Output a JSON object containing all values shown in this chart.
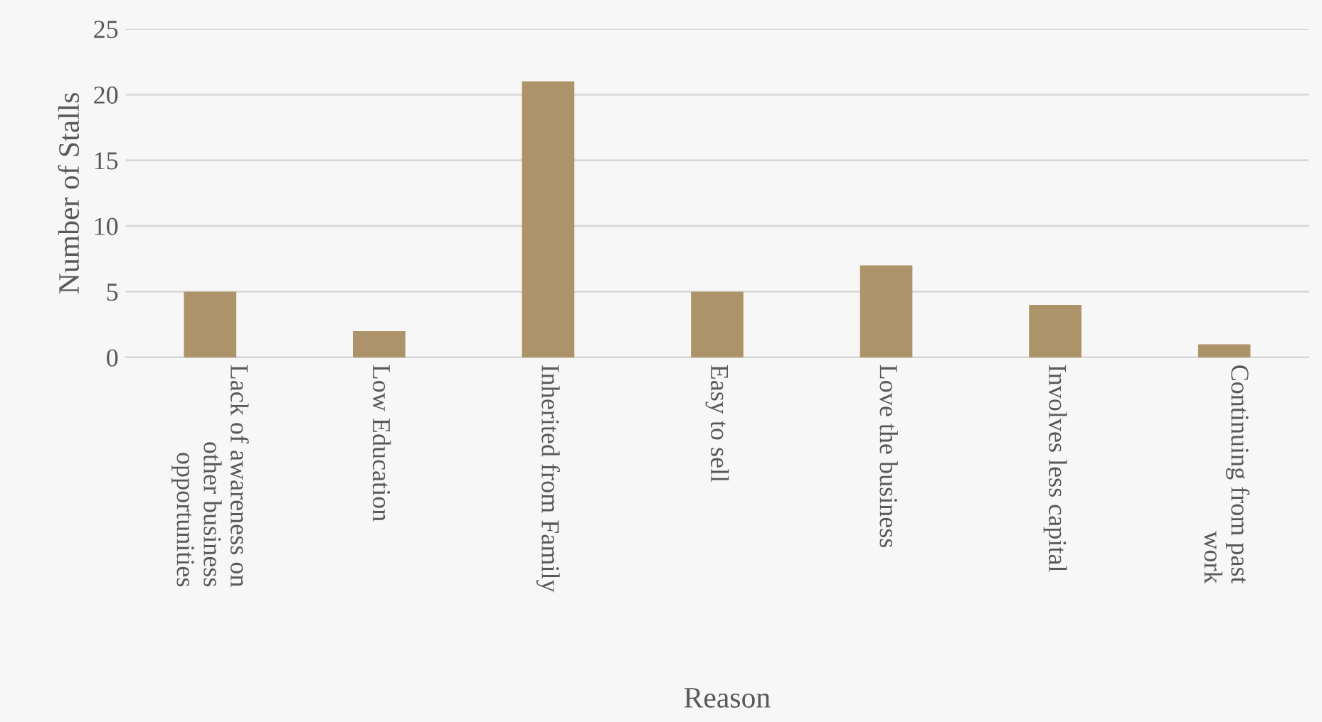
{
  "chart_data": {
    "type": "bar",
    "xlabel": "Reason",
    "ylabel": "Number of Stalls",
    "categories": [
      "Lack of awareness on\nother business\nopportunities",
      "Low Education",
      "Inherited from Family",
      "Easy to sell",
      "Love the business",
      "Involves less capital",
      "Continuing from past\nwork"
    ],
    "values": [
      5,
      2,
      21,
      5,
      7,
      4,
      1
    ],
    "color": "#ad9369",
    "ylim": [
      0,
      25
    ],
    "yticks": [
      0,
      5,
      10,
      15,
      20,
      25
    ],
    "grid": "y"
  }
}
